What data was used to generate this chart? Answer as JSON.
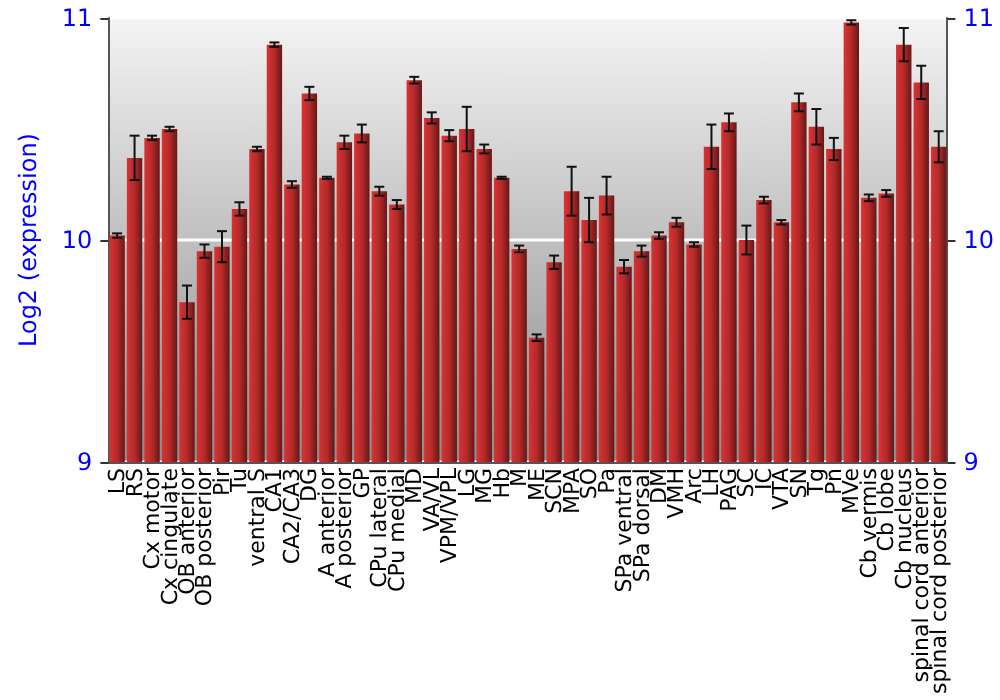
{
  "chart_data": {
    "type": "bar",
    "ylabel": "Log2 (expression)",
    "categories": [
      "LS",
      "RS",
      "Cx motor",
      "Cx cingulate",
      "OB anterior",
      "OB posterior",
      "Pir",
      "Tu",
      "ventral S",
      "CA1",
      "CA2/CA3",
      "DG",
      "A anterior",
      "A posterior",
      "GP",
      "CPu lateral",
      "CPu medial",
      "MD",
      "VA/VL",
      "VPM/VPL",
      "LG",
      "MG",
      "Hb",
      "M",
      "ME",
      "SCN",
      "MPA",
      "SO",
      "Pa",
      "SPa ventral",
      "SPa dorsal",
      "DM",
      "VMH",
      "Arc",
      "LH",
      "PAG",
      "SC",
      "IC",
      "VTA",
      "SN",
      "Tg",
      "Pn",
      "MVe",
      "Cb vermis",
      "Cb lobe",
      "Cb nucleus",
      "spinal cord anterior",
      "spinal cord posterior"
    ],
    "values": [
      10.02,
      10.37,
      10.46,
      10.5,
      9.72,
      9.95,
      9.97,
      10.14,
      10.41,
      10.88,
      10.25,
      10.66,
      10.28,
      10.44,
      10.48,
      10.22,
      10.16,
      10.72,
      10.55,
      10.47,
      10.5,
      10.41,
      10.28,
      9.96,
      9.56,
      9.9,
      10.22,
      10.09,
      10.2,
      9.88,
      9.95,
      10.02,
      10.08,
      9.98,
      10.42,
      10.53,
      10,
      10.18,
      10.08,
      10.62,
      10.51,
      10.41,
      10.98,
      10.19,
      10.21,
      10.88,
      10.71,
      10.42
    ],
    "errors": [
      0.01,
      0.1,
      0.01,
      0.01,
      0.075,
      0.03,
      0.07,
      0.03,
      0.01,
      0.01,
      0.015,
      0.03,
      0.005,
      0.03,
      0.04,
      0.02,
      0.02,
      0.015,
      0.025,
      0.025,
      0.1,
      0.02,
      0.005,
      0.015,
      0.015,
      0.03,
      0.11,
      0.1,
      0.085,
      0.03,
      0.025,
      0.015,
      0.02,
      0.01,
      0.1,
      0.04,
      0.065,
      0.015,
      0.01,
      0.04,
      0.08,
      0.05,
      0.01,
      0.015,
      0.015,
      0.075,
      0.075,
      0.07
    ],
    "color": "#b52a2a",
    "ylim": [
      9,
      11
    ],
    "yticks": [
      9,
      10,
      11
    ],
    "y2lim": [
      9,
      11
    ],
    "y2ticks": [
      9,
      10,
      11
    ],
    "grid": "y"
  }
}
